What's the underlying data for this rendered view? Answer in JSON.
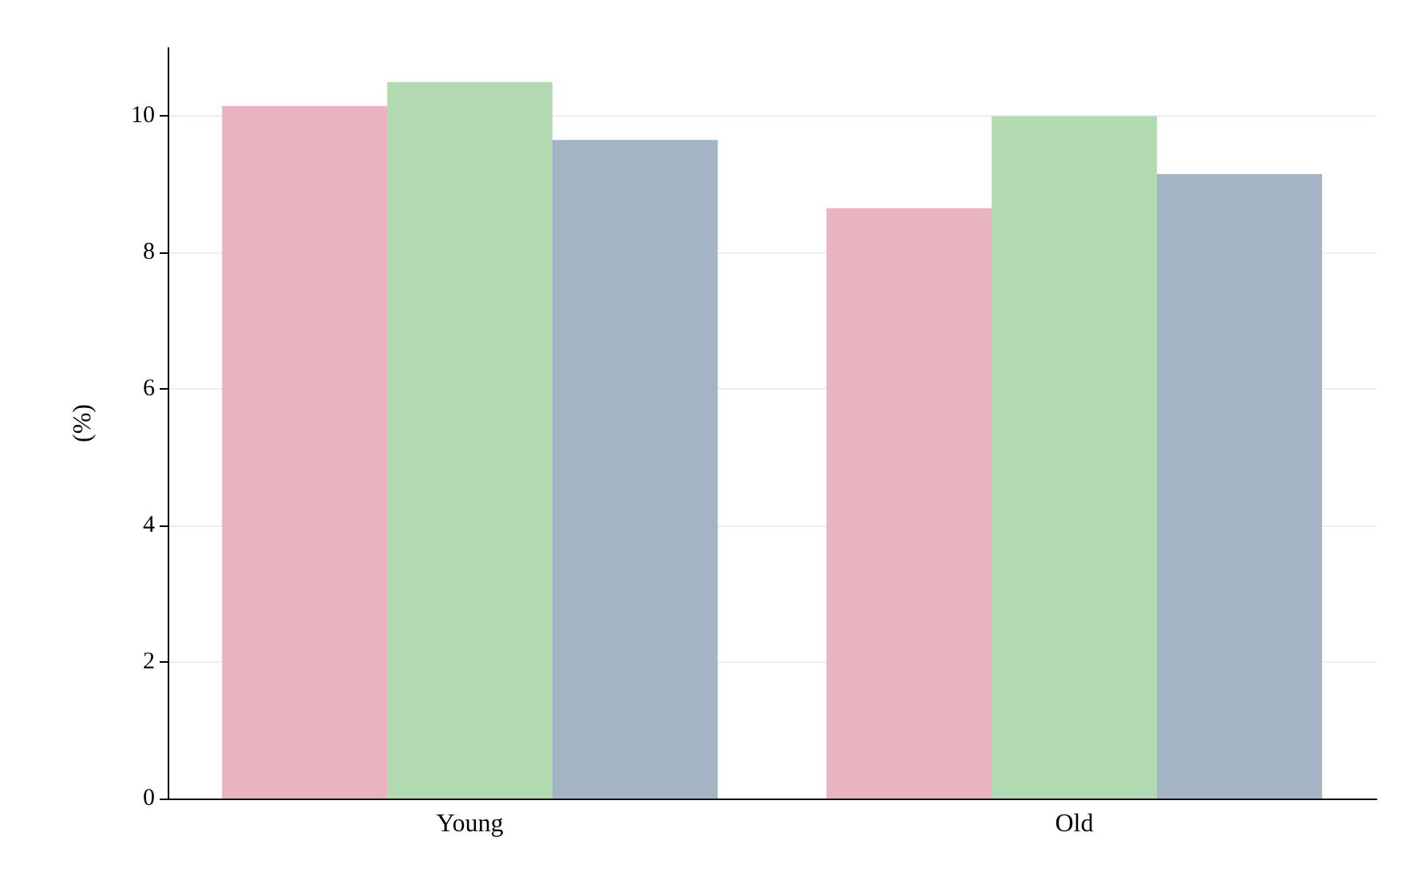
{
  "chart_data": {
    "type": "bar",
    "ylabel": "(%)",
    "categories": [
      "Young",
      "Old"
    ],
    "series": [
      {
        "color": "#eab3c0",
        "values": [
          10.15,
          8.65
        ]
      },
      {
        "color": "#b3d9b0",
        "values": [
          10.5,
          10.0
        ]
      },
      {
        "color": "#a3b4c5",
        "values": [
          9.65,
          9.15
        ]
      }
    ],
    "ylim": [
      0,
      11
    ],
    "yticks": [
      0,
      2,
      4,
      6,
      8,
      10
    ],
    "grid": "y"
  }
}
